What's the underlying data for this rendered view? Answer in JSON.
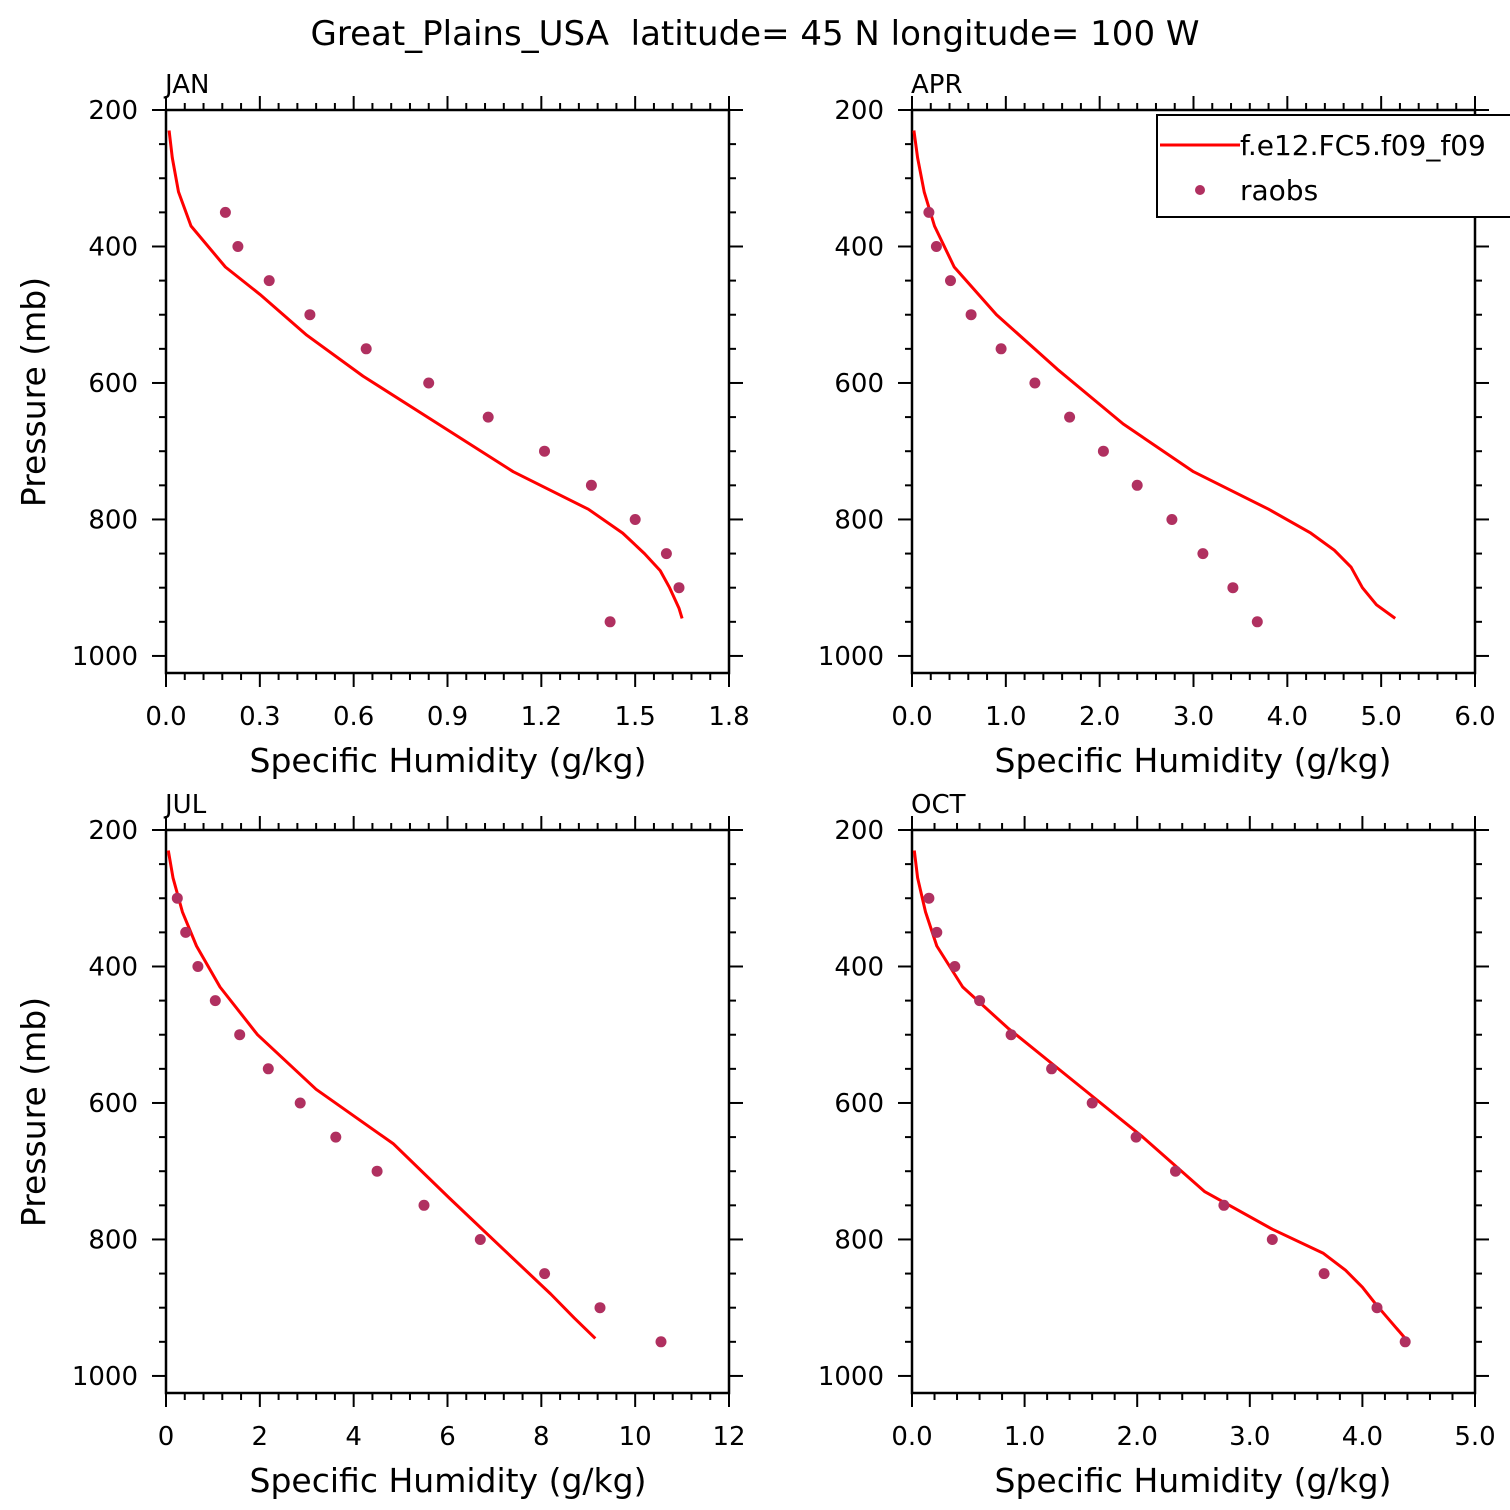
{
  "title": "Great_Plains_USA  latitude= 45 N longitude= 100 W",
  "colors": {
    "model": "#ff0000",
    "obs": "#b03060",
    "axis": "#000000"
  },
  "legend": {
    "model_label": "f.e12.FC5.f09_f09",
    "obs_label": "raobs",
    "placement": "inside top-right of APR panel, clipped at right edge"
  },
  "chart_data": [
    {
      "type": "line",
      "panel": "JAN",
      "xlabel": "Specific Humidity (g/kg)",
      "ylabel": "Pressure (mb)",
      "xlim": [
        0,
        1.8
      ],
      "ylim": [
        1025,
        200
      ],
      "y_reversed": true,
      "xticks": [
        0.0,
        0.3,
        0.6,
        0.9,
        1.2,
        1.5,
        1.8
      ],
      "xtick_labels": [
        "0.0",
        "0.3",
        "0.6",
        "0.9",
        "1.2",
        "1.5",
        "1.8"
      ],
      "yticks": [
        200,
        400,
        600,
        800,
        1000
      ],
      "ytick_labels": [
        "200",
        "400",
        "600",
        "800",
        "1000"
      ],
      "series": [
        {
          "name": "f.e12.FC5.f09_f09",
          "kind": "line",
          "x": [
            0.01,
            0.02,
            0.04,
            0.08,
            0.19,
            0.3,
            0.45,
            0.63,
            0.87,
            1.11,
            1.35,
            1.46,
            1.53,
            1.58,
            1.61,
            1.63,
            1.64,
            1.65
          ],
          "y": [
            230,
            270,
            320,
            370,
            430,
            470,
            530,
            590,
            660,
            730,
            785,
            820,
            850,
            875,
            900,
            920,
            930,
            945
          ]
        },
        {
          "name": "raobs",
          "kind": "scatter",
          "x": [
            0.19,
            0.23,
            0.33,
            0.46,
            0.64,
            0.84,
            1.03,
            1.21,
            1.36,
            1.5,
            1.6,
            1.64,
            1.42
          ],
          "y": [
            350,
            400,
            450,
            500,
            550,
            600,
            650,
            700,
            750,
            800,
            850,
            900,
            950
          ]
        }
      ]
    },
    {
      "type": "line",
      "panel": "APR",
      "xlabel": "Specific Humidity (g/kg)",
      "ylabel": "",
      "xlim": [
        0,
        6.0
      ],
      "ylim": [
        1025,
        200
      ],
      "y_reversed": true,
      "xticks": [
        0,
        1,
        2,
        3,
        4,
        5,
        6
      ],
      "xtick_labels": [
        "0.0",
        "1.0",
        "2.0",
        "3.0",
        "4.0",
        "5.0",
        "6.0"
      ],
      "yticks": [
        200,
        400,
        600,
        800,
        1000
      ],
      "ytick_labels": [
        "200",
        "400",
        "600",
        "800",
        "1000"
      ],
      "series": [
        {
          "name": "f.e12.FC5.f09_f09",
          "kind": "line",
          "x": [
            0.02,
            0.06,
            0.13,
            0.24,
            0.45,
            0.9,
            1.55,
            2.25,
            3.0,
            3.8,
            4.25,
            4.5,
            4.68,
            4.8,
            4.95,
            5.15
          ],
          "y": [
            230,
            270,
            320,
            370,
            430,
            500,
            580,
            660,
            730,
            785,
            820,
            845,
            870,
            900,
            925,
            945
          ]
        },
        {
          "name": "raobs",
          "kind": "scatter",
          "x": [
            0.18,
            0.26,
            0.41,
            0.63,
            0.95,
            1.31,
            1.68,
            2.04,
            2.4,
            2.77,
            3.1,
            3.42,
            3.68
          ],
          "y": [
            350,
            400,
            450,
            500,
            550,
            600,
            650,
            700,
            750,
            800,
            850,
            900,
            950
          ]
        }
      ]
    },
    {
      "type": "line",
      "panel": "JUL",
      "xlabel": "Specific Humidity (g/kg)",
      "ylabel": "Pressure (mb)",
      "xlim": [
        0,
        12
      ],
      "ylim": [
        1025,
        200
      ],
      "y_reversed": true,
      "xticks": [
        0,
        2,
        4,
        6,
        8,
        10,
        12
      ],
      "xtick_labels": [
        "0",
        "2",
        "4",
        "6",
        "8",
        "10",
        "12"
      ],
      "yticks": [
        200,
        400,
        600,
        800,
        1000
      ],
      "ytick_labels": [
        "200",
        "400",
        "600",
        "800",
        "1000"
      ],
      "series": [
        {
          "name": "f.e12.FC5.f09_f09",
          "kind": "line",
          "x": [
            0.05,
            0.15,
            0.35,
            0.65,
            1.15,
            1.95,
            3.2,
            4.85,
            6.05,
            7.2,
            8.2,
            8.7,
            9.15
          ],
          "y": [
            230,
            270,
            320,
            370,
            430,
            500,
            580,
            660,
            740,
            815,
            880,
            915,
            945
          ]
        },
        {
          "name": "raobs",
          "kind": "scatter",
          "x": [
            0.24,
            0.42,
            0.68,
            1.05,
            1.57,
            2.18,
            2.86,
            3.62,
            4.5,
            5.5,
            6.7,
            8.07,
            9.25,
            10.55
          ],
          "y": [
            300,
            350,
            400,
            450,
            500,
            550,
            600,
            650,
            700,
            750,
            800,
            850,
            900,
            950
          ]
        }
      ]
    },
    {
      "type": "line",
      "panel": "OCT",
      "xlabel": "Specific Humidity (g/kg)",
      "ylabel": "",
      "xlim": [
        0,
        5.0
      ],
      "ylim": [
        1025,
        200
      ],
      "y_reversed": true,
      "xticks": [
        0,
        1,
        2,
        3,
        4,
        5
      ],
      "xtick_labels": [
        "0.0",
        "1.0",
        "2.0",
        "3.0",
        "4.0",
        "5.0"
      ],
      "yticks": [
        200,
        400,
        600,
        800,
        1000
      ],
      "ytick_labels": [
        "200",
        "400",
        "600",
        "800",
        "1000"
      ],
      "series": [
        {
          "name": "f.e12.FC5.f09_f09",
          "kind": "line",
          "x": [
            0.02,
            0.05,
            0.12,
            0.22,
            0.45,
            0.85,
            1.45,
            2.05,
            2.6,
            3.2,
            3.65,
            3.85,
            4.0,
            4.12,
            4.25,
            4.38
          ],
          "y": [
            230,
            270,
            320,
            370,
            430,
            490,
            570,
            650,
            730,
            785,
            820,
            845,
            870,
            895,
            920,
            945
          ]
        },
        {
          "name": "raobs",
          "kind": "scatter",
          "x": [
            0.15,
            0.22,
            0.38,
            0.6,
            0.88,
            1.24,
            1.6,
            1.99,
            2.34,
            2.77,
            3.2,
            3.66,
            4.13,
            4.38
          ],
          "y": [
            300,
            350,
            400,
            450,
            500,
            550,
            600,
            650,
            700,
            750,
            800,
            850,
            900,
            950
          ]
        }
      ]
    }
  ]
}
